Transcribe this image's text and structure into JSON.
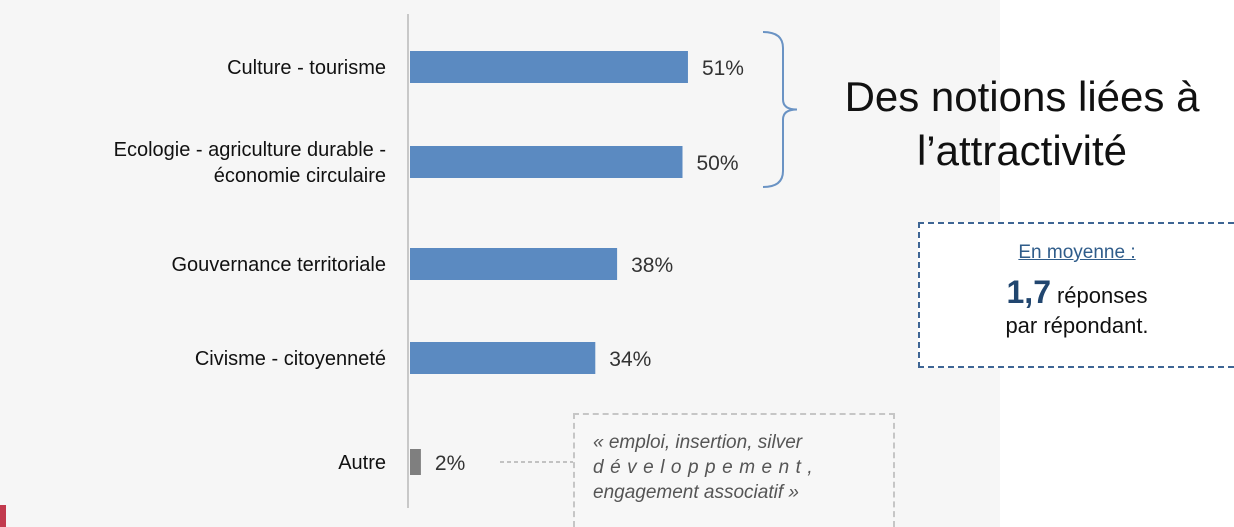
{
  "chart_data": {
    "type": "bar",
    "orientation": "horizontal",
    "title": "",
    "xlabel": "",
    "ylabel": "",
    "categories": [
      [
        "Culture - tourisme"
      ],
      [
        "Ecologie - agriculture durable -",
        "économie circulaire"
      ],
      [
        "Gouvernance territoriale"
      ],
      [
        "Civisme - citoyenneté"
      ],
      [
        "Autre"
      ]
    ],
    "values": [
      51,
      50,
      38,
      34,
      2
    ],
    "value_labels": [
      "51%",
      "50%",
      "38%",
      "34%",
      "2%"
    ],
    "xlim": [
      0,
      100
    ],
    "grid": false,
    "colors": {
      "bar": "#5b8ac1",
      "bar_other": "#7f7f7f",
      "axis": "#c8c8c8",
      "bracket": "#6a93c4",
      "connector": "#b0b0b0"
    }
  },
  "headline": {
    "line1": "Des notions liées à",
    "line2": "l’attractivité"
  },
  "average_box": {
    "title": "En moyenne :",
    "value": "1,7",
    "unit": "réponses",
    "subtitle": "par répondant."
  },
  "quote": {
    "line1": "« emploi, insertion, silver",
    "line2": "développement,",
    "line3": "engagement associatif »"
  }
}
